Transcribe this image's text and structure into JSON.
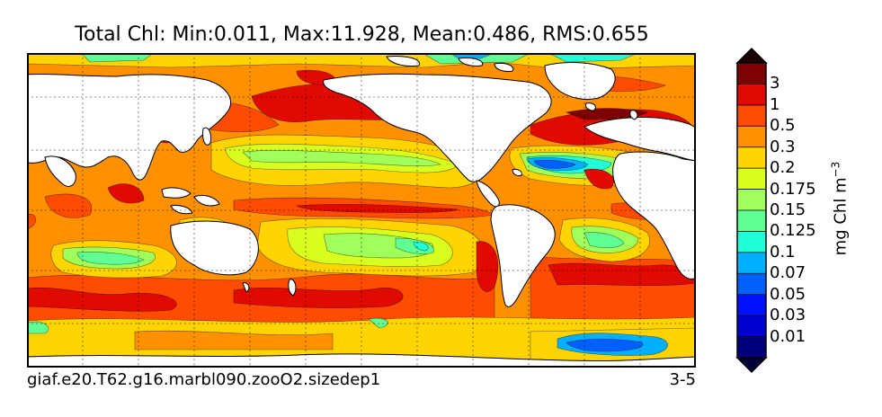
{
  "figure": {
    "title": "Total Chl: Min:0.011, Max:11.928, Mean:0.486, RMS:0.655",
    "run_label": "giaf.e20.T62.g16.marbl090.zooO2.sizedep1",
    "season_label": "3-5"
  },
  "colorbar": {
    "label": "mg Chl m",
    "label_exponent": "−3",
    "extend": "both",
    "bands": [
      {
        "color": "#00007f"
      },
      {
        "color": "#0000d0"
      },
      {
        "color": "#0010ff"
      },
      {
        "color": "#0060ff"
      },
      {
        "color": "#00b0ff"
      },
      {
        "color": "#20ffd8"
      },
      {
        "color": "#60ff96"
      },
      {
        "color": "#a0ff5a"
      },
      {
        "color": "#d8ff20"
      },
      {
        "color": "#ffd400"
      },
      {
        "color": "#ff9000"
      },
      {
        "color": "#ff4c00"
      },
      {
        "color": "#e00a00"
      },
      {
        "color": "#7f0000"
      }
    ],
    "under_color": "#00003a",
    "over_color": "#1a0000",
    "ticks": [
      "0.01",
      "0.03",
      "0.05",
      "0.07",
      "0.1",
      "0.125",
      "0.15",
      "0.175",
      "0.2",
      "0.3",
      "0.5",
      "1",
      "3"
    ]
  },
  "map": {
    "ocean_base_color": "#ff9000",
    "land_color": "#ffffff",
    "gridlines": "dotted"
  }
}
